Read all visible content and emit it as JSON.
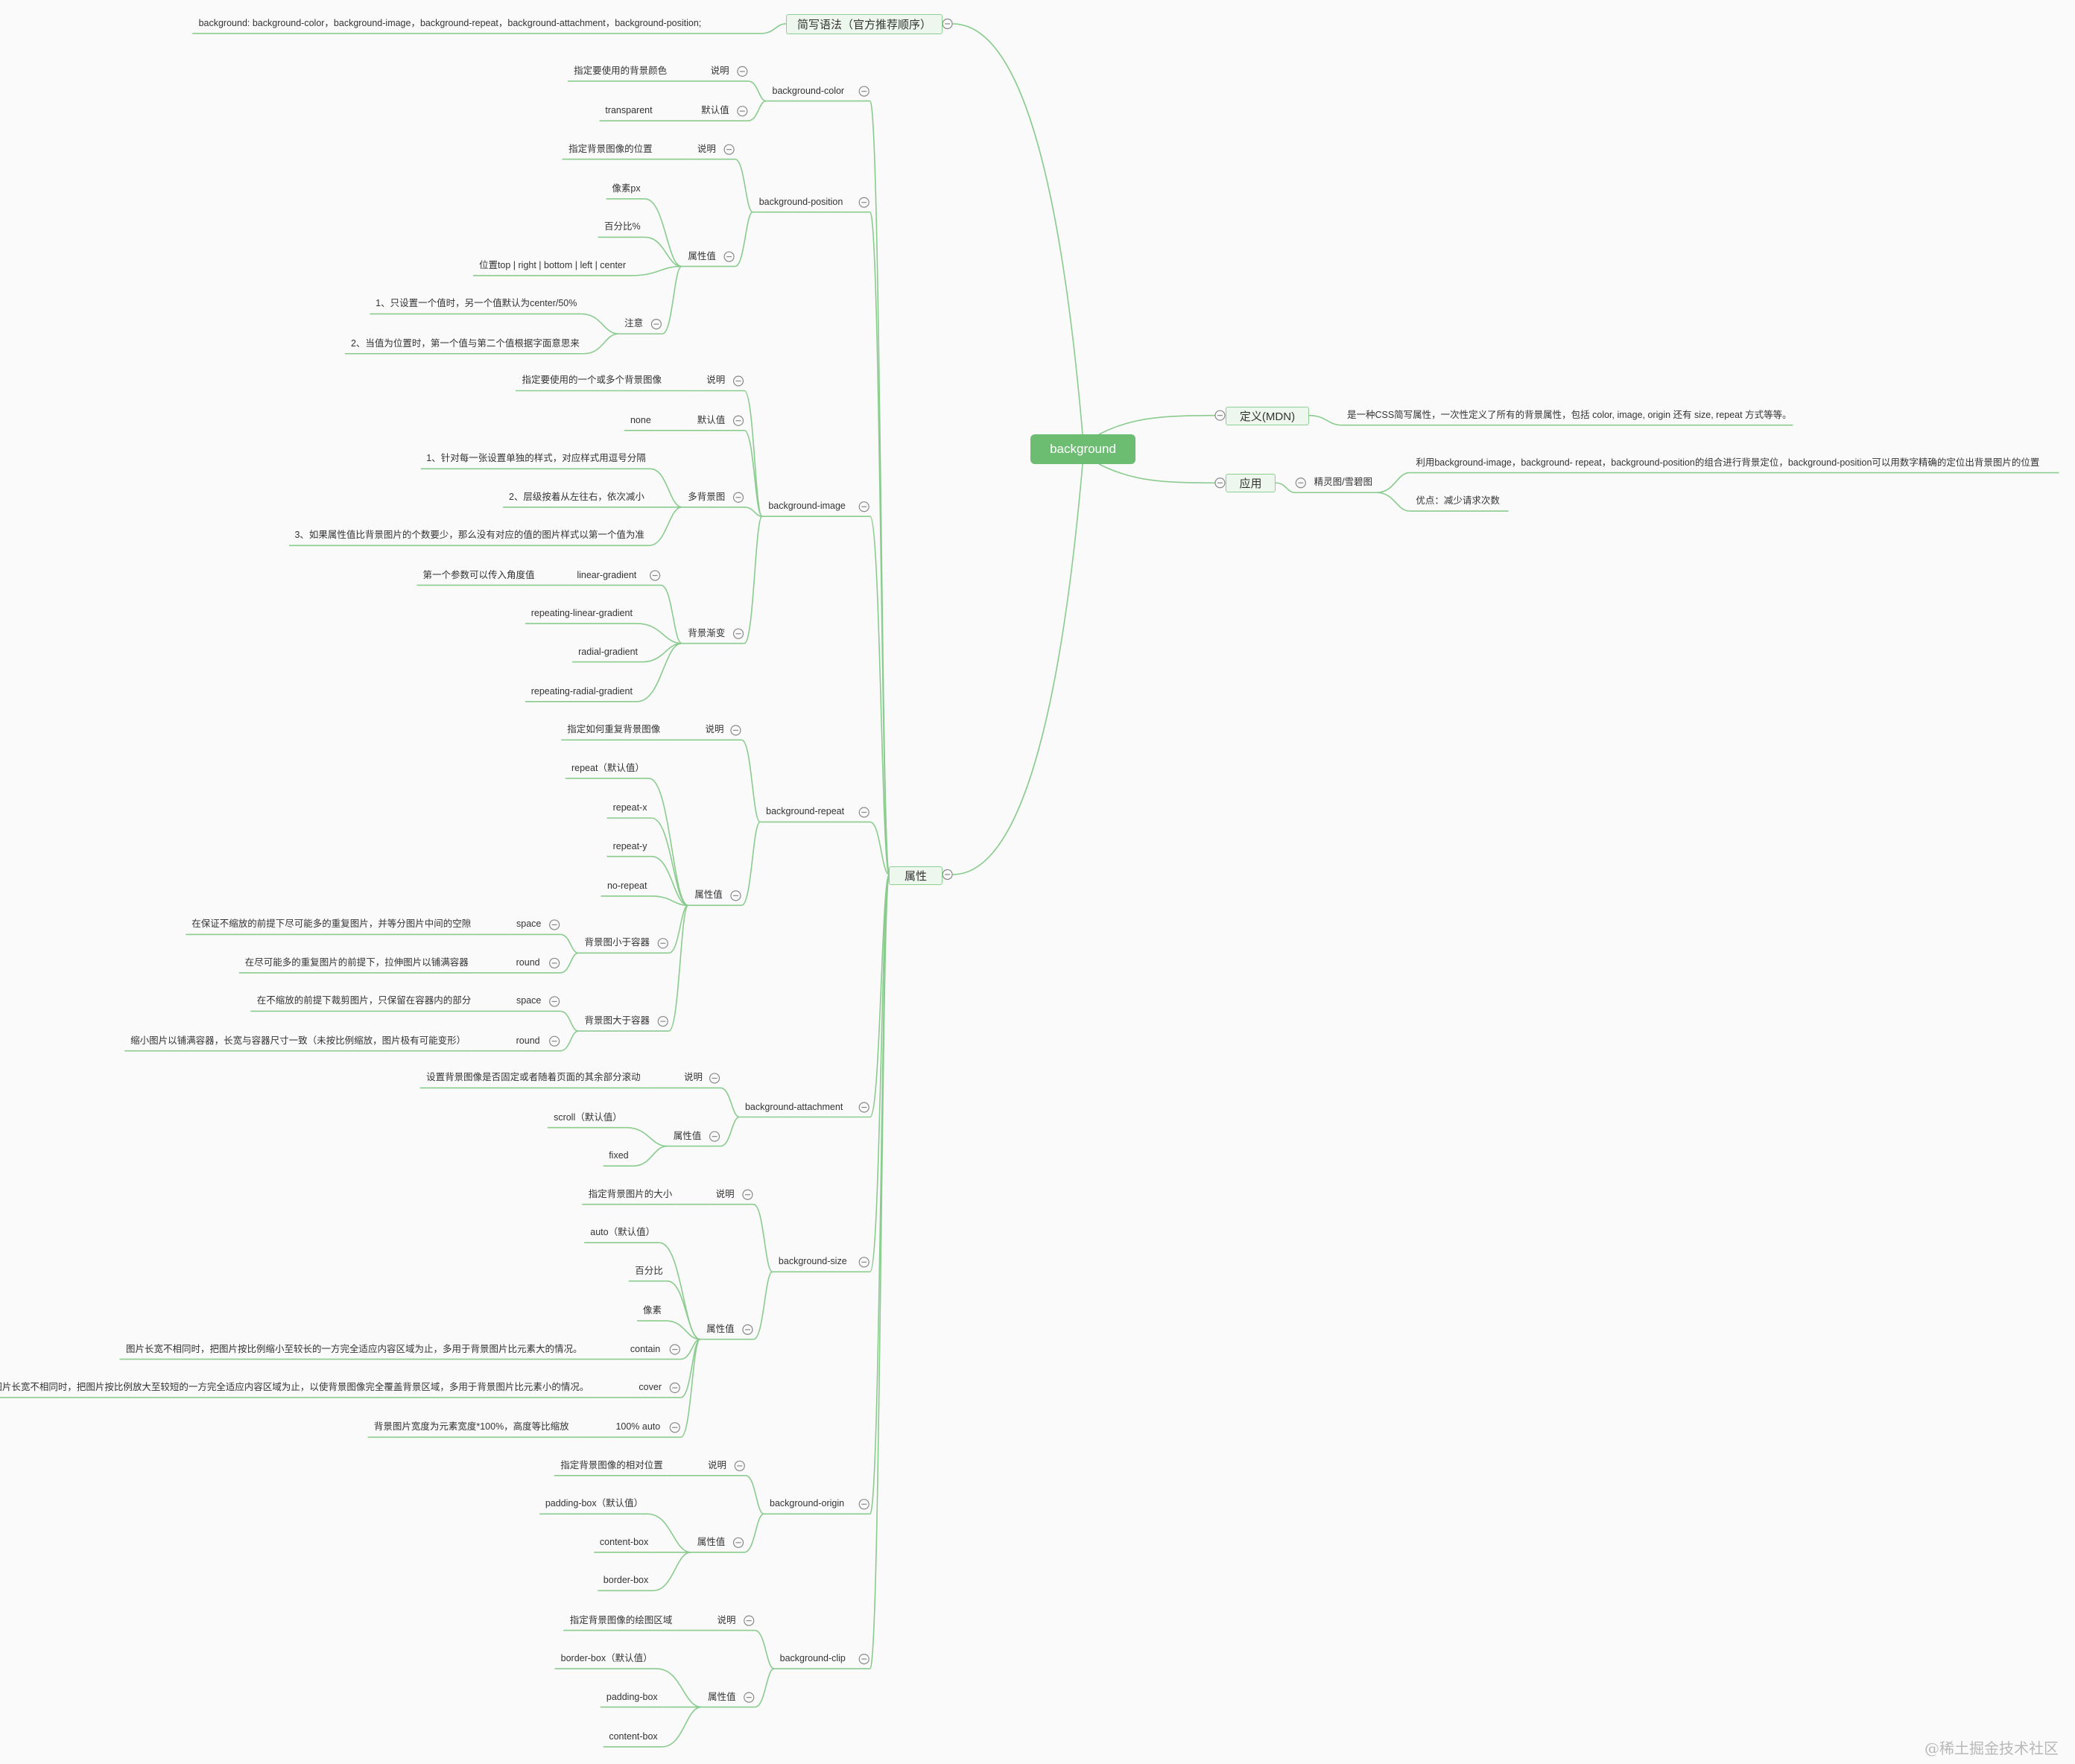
{
  "colors": {
    "line": "#8acb8e",
    "root_fill": "#6cbd72",
    "box_fill": "#eef7ee",
    "box_border": "#8fcf93",
    "collapse_icon": "#888888"
  },
  "root": {
    "text": "background"
  },
  "left": [
    {
      "text": "简写语法（官方推荐顺序）",
      "children": [
        {
          "text": "background: background-color，background-image，background-repeat，background-attachment，background-position;"
        }
      ]
    },
    {
      "text": "属性",
      "children": [
        {
          "text": "background-color",
          "children": [
            {
              "text": "说明",
              "children": [
                {
                  "text": "指定要使用的背景颜色"
                }
              ]
            },
            {
              "text": "默认值",
              "children": [
                {
                  "text": "transparent"
                }
              ]
            }
          ]
        },
        {
          "text": "background-position",
          "children": [
            {
              "text": "说明",
              "children": [
                {
                  "text": "指定背景图像的位置"
                }
              ]
            },
            {
              "text": "属性值",
              "children": [
                {
                  "text": "像素px"
                },
                {
                  "text": "百分比%"
                },
                {
                  "text": "位置top | right | bottom | left | center"
                },
                {
                  "text": "注意",
                  "children": [
                    {
                      "text": "1、只设置一个值时，另一个值默认为center/50%"
                    },
                    {
                      "text": "2、当值为位置时，第一个值与第二个值根据字面意思来"
                    }
                  ]
                }
              ]
            }
          ]
        },
        {
          "text": "background-image",
          "children": [
            {
              "text": "说明",
              "children": [
                {
                  "text": "指定要使用的一个或多个背景图像"
                }
              ]
            },
            {
              "text": "默认值",
              "children": [
                {
                  "text": "none"
                }
              ]
            },
            {
              "text": "多背景图",
              "children": [
                {
                  "text": "1、针对每一张设置单独的样式，对应样式用逗号分隔"
                },
                {
                  "text": "2、层级按着从左往右，依次减小"
                },
                {
                  "text": "3、如果属性值比背景图片的个数要少，那么没有对应的值的图片样式以第一个值为准"
                }
              ]
            },
            {
              "text": "背景渐变",
              "children": [
                {
                  "text": "linear-gradient",
                  "children": [
                    {
                      "text": "第一个参数可以传入角度值"
                    }
                  ]
                },
                {
                  "text": "repeating-linear-gradient"
                },
                {
                  "text": "radial-gradient"
                },
                {
                  "text": "repeating-radial-gradient"
                }
              ]
            }
          ]
        },
        {
          "text": "background-repeat",
          "children": [
            {
              "text": "说明",
              "children": [
                {
                  "text": "指定如何重复背景图像"
                }
              ]
            },
            {
              "text": "属性值",
              "children": [
                {
                  "text": "repeat（默认值）"
                },
                {
                  "text": "repeat-x"
                },
                {
                  "text": "repeat-y"
                },
                {
                  "text": "no-repeat"
                },
                {
                  "text": "背景图小于容器",
                  "children": [
                    {
                      "text": "space",
                      "children": [
                        {
                          "text": "在保证不缩放的前提下尽可能多的重复图片，并等分图片中间的空隙"
                        }
                      ]
                    },
                    {
                      "text": "round",
                      "children": [
                        {
                          "text": "在尽可能多的重复图片的前提下，拉伸图片以铺满容器"
                        }
                      ]
                    }
                  ]
                },
                {
                  "text": "背景图大于容器",
                  "children": [
                    {
                      "text": "space",
                      "children": [
                        {
                          "text": "在不缩放的前提下裁剪图片，只保留在容器内的部分"
                        }
                      ]
                    },
                    {
                      "text": "round",
                      "children": [
                        {
                          "text": "缩小图片以铺满容器，长宽与容器尺寸一致（未按比例缩放，图片极有可能变形）"
                        }
                      ]
                    }
                  ]
                }
              ]
            }
          ]
        },
        {
          "text": "background-attachment",
          "children": [
            {
              "text": "说明",
              "children": [
                {
                  "text": "设置背景图像是否固定或者随着页面的其余部分滚动"
                }
              ]
            },
            {
              "text": "属性值",
              "children": [
                {
                  "text": "scroll（默认值）"
                },
                {
                  "text": "fixed"
                }
              ]
            }
          ]
        },
        {
          "text": "background-size",
          "children": [
            {
              "text": "说明",
              "children": [
                {
                  "text": "指定背景图片的大小"
                }
              ]
            },
            {
              "text": "属性值",
              "children": [
                {
                  "text": "auto（默认值）"
                },
                {
                  "text": "百分比"
                },
                {
                  "text": "像素"
                },
                {
                  "text": "contain",
                  "children": [
                    {
                      "text": "图片长宽不相同时，把图片按比例缩小至较长的一方完全适应内容区域为止，多用于背景图片比元素大的情况。"
                    }
                  ]
                },
                {
                  "text": "cover",
                  "children": [
                    {
                      "text": "图片长宽不相同时，把图片按比例放大至较短的一方完全适应内容区域为止，以使背景图像完全覆盖背景区域，多用于背景图片比元素小的情况。"
                    }
                  ]
                },
                {
                  "text": "100% auto",
                  "children": [
                    {
                      "text": "背景图片宽度为元素宽度*100%，高度等比缩放"
                    }
                  ]
                }
              ]
            }
          ]
        },
        {
          "text": "background-origin",
          "children": [
            {
              "text": "说明",
              "children": [
                {
                  "text": "指定背景图像的相对位置"
                }
              ]
            },
            {
              "text": "属性值",
              "children": [
                {
                  "text": "padding-box（默认值）"
                },
                {
                  "text": "content-box"
                },
                {
                  "text": "border-box"
                }
              ]
            }
          ]
        },
        {
          "text": "background-clip",
          "children": [
            {
              "text": "说明",
              "children": [
                {
                  "text": "指定背景图像的绘图区域"
                }
              ]
            },
            {
              "text": "属性值",
              "children": [
                {
                  "text": "border-box（默认值）"
                },
                {
                  "text": "padding-box"
                },
                {
                  "text": "content-box"
                }
              ]
            }
          ]
        }
      ]
    }
  ],
  "right": [
    {
      "text": "定义(MDN)",
      "children": [
        {
          "text": "是一种CSS简写属性，一次性定义了所有的背景属性，包括 color, image, origin 还有 size, repeat 方式等等。"
        }
      ]
    },
    {
      "text": "应用",
      "children": [
        {
          "text": "精灵图/雪碧图",
          "children": [
            {
              "text": "利用background-image，background- repeat，background-position的组合进行背景定位，background-position可以用数字精确的定位出背景图片的位置"
            },
            {
              "text": "优点：减少请求次数"
            }
          ]
        }
      ]
    }
  ],
  "watermark": "@稀土掘金技术社区"
}
